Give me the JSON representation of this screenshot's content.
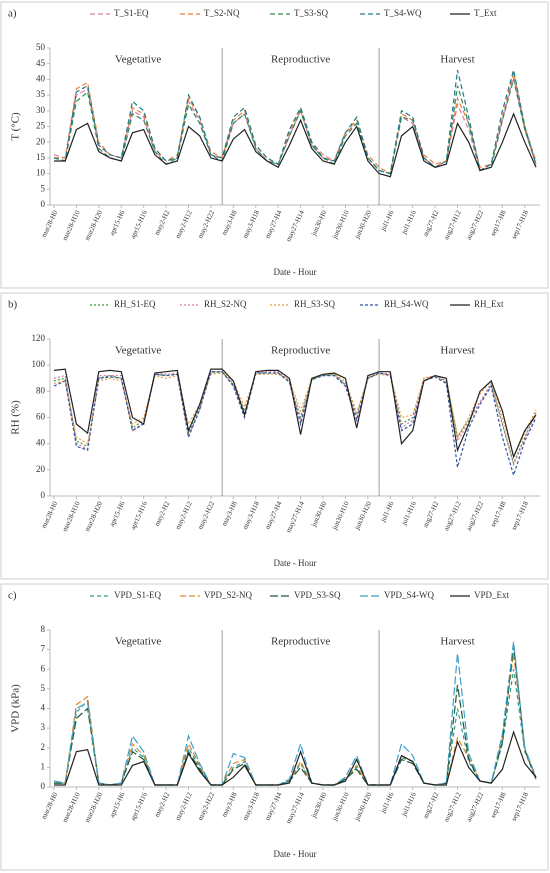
{
  "chart_data": [
    {
      "type": "line",
      "label": "a)",
      "ylabel": "T (°C)",
      "xlabel": "Date - Hour",
      "phases": [
        "Vegetative",
        "Reproductive",
        "Harvest"
      ],
      "categories": [
        "mar28-H0",
        null,
        "mar28-H10",
        null,
        "mar28-H20",
        null,
        "apr15-H6",
        null,
        "apr15-H16",
        null,
        "may2-H2",
        null,
        "may2-H12",
        null,
        "may2-H22",
        null,
        "may3-H8",
        null,
        "may3-H18",
        null,
        "may27-H4",
        null,
        "may27-H14",
        null,
        "jun30-H0",
        null,
        "jun30-H10",
        null,
        "jun30-H20",
        null,
        "jul1-H6",
        null,
        "jul1-H16",
        null,
        "aug27-H2",
        null,
        "aug27-H12",
        null,
        "aug27-H22",
        null,
        "sep17-H8",
        null,
        "sep17-H18",
        null
      ],
      "ylim": [
        0,
        50
      ],
      "yticks": [
        0,
        5,
        10,
        15,
        20,
        25,
        30,
        35,
        40,
        45,
        50
      ],
      "series": [
        {
          "name": "T_S1-EQ",
          "color": "#e07aa6",
          "dash": "5,3",
          "values": [
            16,
            15,
            35,
            37,
            19,
            16,
            15,
            30,
            28,
            17,
            14,
            15,
            33,
            27,
            16,
            15,
            26,
            29,
            18,
            14,
            13,
            22,
            30,
            19,
            15,
            14,
            23,
            26,
            15,
            11,
            10,
            28,
            26,
            15,
            12,
            14,
            32,
            24,
            11,
            13,
            27,
            41,
            24,
            13
          ]
        },
        {
          "name": "T_S2-NQ",
          "color": "#e8823c",
          "dash": "5,3",
          "values": [
            15,
            15,
            37,
            39,
            20,
            16,
            15,
            31,
            29,
            18,
            14,
            16,
            34,
            28,
            17,
            15,
            27,
            30,
            19,
            15,
            13,
            23,
            31,
            20,
            16,
            14,
            23,
            27,
            16,
            12,
            10,
            29,
            27,
            16,
            13,
            14,
            34,
            26,
            12,
            13,
            28,
            42,
            25,
            14
          ]
        },
        {
          "name": "T_S3-SQ",
          "color": "#2e8b57",
          "dash": "5,3",
          "values": [
            15,
            14,
            33,
            36,
            18,
            15,
            14,
            29,
            27,
            17,
            13,
            15,
            32,
            26,
            16,
            14,
            26,
            29,
            18,
            14,
            13,
            22,
            30,
            19,
            15,
            13,
            22,
            26,
            15,
            11,
            10,
            28,
            27,
            15,
            12,
            13,
            38,
            26,
            11,
            12,
            27,
            40,
            24,
            13
          ]
        },
        {
          "name": "T_S4-WQ",
          "color": "#1f7a8c",
          "dash": "5,3",
          "values": [
            15,
            14,
            36,
            38,
            19,
            16,
            15,
            33,
            30,
            18,
            14,
            15,
            35,
            28,
            16,
            15,
            28,
            31,
            19,
            15,
            13,
            24,
            31,
            20,
            15,
            14,
            23,
            28,
            15,
            11,
            10,
            30,
            28,
            15,
            12,
            14,
            43,
            28,
            11,
            13,
            30,
            43,
            25,
            13
          ]
        },
        {
          "name": "T_Ext",
          "color": "#222222",
          "dash": "none",
          "values": [
            14,
            14,
            24,
            26,
            17,
            15,
            14,
            23,
            24,
            16,
            13,
            14,
            25,
            22,
            15,
            14,
            21,
            24,
            17,
            14,
            12,
            19,
            27,
            18,
            14,
            13,
            20,
            25,
            14,
            10,
            9,
            22,
            25,
            14,
            12,
            13,
            26,
            20,
            11,
            12,
            20,
            29,
            20,
            12
          ]
        }
      ]
    },
    {
      "type": "line",
      "label": "b)",
      "ylabel": "RH (%)",
      "xlabel": "Date - Hour",
      "phases": [
        "Vegetative",
        "Reproductive",
        "Harvest"
      ],
      "categories": [
        "mar28-H0",
        null,
        "mar28-H10",
        null,
        "mar28-H20",
        null,
        "apr15-H6",
        null,
        "apr15-H16",
        null,
        "may2-H2",
        null,
        "may2-H12",
        null,
        "may2-H22",
        null,
        "may3-H8",
        null,
        "may3-H18",
        null,
        "may27-H4",
        null,
        "may27-H14",
        null,
        "jun30-H0",
        null,
        "jun30-H10",
        null,
        "jun30-H20",
        null,
        "jul1-H6",
        null,
        "jul1-H16",
        null,
        "aug27-H2",
        null,
        "aug27-H12",
        null,
        "aug27-H22",
        null,
        "sep17-H8",
        null,
        "sep17-H18",
        null
      ],
      "ylim": [
        0,
        120
      ],
      "yticks": [
        0,
        20,
        40,
        60,
        80,
        100,
        120
      ],
      "series": [
        {
          "name": "RH_S1-EQ",
          "color": "#3a9a3a",
          "dash": "2,2",
          "values": [
            88,
            90,
            42,
            38,
            90,
            92,
            90,
            52,
            58,
            93,
            92,
            93,
            48,
            68,
            94,
            95,
            85,
            65,
            94,
            94,
            94,
            88,
            60,
            89,
            92,
            93,
            85,
            62,
            90,
            94,
            93,
            55,
            60,
            88,
            92,
            88,
            45,
            58,
            72,
            85,
            55,
            25,
            45,
            63
          ]
        },
        {
          "name": "RH_S2-NQ",
          "color": "#d97aa0",
          "dash": "2,2",
          "values": [
            90,
            92,
            40,
            36,
            92,
            92,
            92,
            50,
            56,
            94,
            93,
            94,
            46,
            66,
            95,
            95,
            86,
            63,
            94,
            95,
            95,
            88,
            58,
            90,
            93,
            93,
            86,
            60,
            91,
            94,
            93,
            52,
            58,
            90,
            92,
            87,
            42,
            56,
            72,
            86,
            55,
            24,
            44,
            64
          ]
        },
        {
          "name": "RH_S3-SQ",
          "color": "#e8a040",
          "dash": "2,2",
          "values": [
            86,
            88,
            45,
            40,
            88,
            90,
            88,
            55,
            60,
            92,
            90,
            92,
            55,
            70,
            93,
            94,
            88,
            68,
            93,
            93,
            93,
            89,
            65,
            90,
            92,
            93,
            88,
            64,
            90,
            93,
            92,
            60,
            62,
            90,
            92,
            90,
            45,
            60,
            78,
            88,
            60,
            30,
            48,
            66
          ]
        },
        {
          "name": "RH_S4-WQ",
          "color": "#2f55a4",
          "dash": "3,2",
          "values": [
            84,
            88,
            38,
            35,
            90,
            91,
            90,
            50,
            55,
            93,
            92,
            93,
            45,
            66,
            95,
            95,
            84,
            60,
            94,
            94,
            94,
            87,
            55,
            89,
            92,
            92,
            84,
            58,
            90,
            94,
            92,
            50,
            55,
            88,
            91,
            86,
            22,
            52,
            70,
            84,
            45,
            16,
            42,
            60
          ]
        },
        {
          "name": "RH_Ext",
          "color": "#222222",
          "dash": "none",
          "values": [
            96,
            97,
            55,
            48,
            95,
            96,
            95,
            60,
            55,
            94,
            95,
            96,
            50,
            70,
            97,
            97,
            88,
            62,
            95,
            96,
            96,
            90,
            47,
            90,
            93,
            94,
            90,
            52,
            92,
            95,
            95,
            40,
            50,
            88,
            92,
            90,
            35,
            55,
            80,
            88,
            65,
            30,
            50,
            62
          ]
        }
      ]
    },
    {
      "type": "line",
      "label": "c)",
      "ylabel": "VPD (kPa)",
      "xlabel": "Date - Hour",
      "phases": [
        "Vegetative",
        "Reproductive",
        "Harvest"
      ],
      "categories": [
        "mar28-H0",
        null,
        "mar28-H10",
        null,
        "mar28-H20",
        null,
        "apr15-H6",
        null,
        "apr15-H16",
        null,
        "may2-H2",
        null,
        "may2-H12",
        null,
        "may2-H22",
        null,
        "may3-H8",
        null,
        "may3-H18",
        null,
        "may27-H4",
        null,
        "may27-H14",
        null,
        "jun30-H0",
        null,
        "jun30-H10",
        null,
        "jun30-H20",
        null,
        "jul1-H6",
        null,
        "jul1-H16",
        null,
        "aug27-H2",
        null,
        "aug27-H12",
        null,
        "aug27-H22",
        null,
        "sep17-H8",
        null,
        "sep17-H18",
        null
      ],
      "ylim": [
        0,
        8
      ],
      "yticks": [
        0,
        1,
        2,
        3,
        4,
        5,
        6,
        7,
        8
      ],
      "series": [
        {
          "name": "VPD_S1-EQ",
          "color": "#3a9a8a",
          "dash": "4,3",
          "values": [
            0.2,
            0.2,
            3.8,
            4.4,
            0.2,
            0.1,
            0.2,
            2.0,
            1.5,
            0.1,
            0.1,
            0.1,
            2.0,
            1.0,
            0.1,
            0.1,
            1.0,
            1.3,
            0.1,
            0.1,
            0.1,
            0.3,
            1.2,
            0.2,
            0.1,
            0.1,
            0.4,
            1.0,
            0.1,
            0.1,
            0.1,
            1.5,
            1.3,
            0.2,
            0.1,
            0.2,
            4.0,
            1.3,
            0.3,
            0.2,
            2.2,
            6.0,
            1.8,
            0.4
          ]
        },
        {
          "name": "VPD_S2-NQ",
          "color": "#d98a30",
          "dash": "6,3",
          "values": [
            0.2,
            0.2,
            4.2,
            4.6,
            0.2,
            0.1,
            0.2,
            2.2,
            1.6,
            0.1,
            0.1,
            0.1,
            2.2,
            1.1,
            0.1,
            0.1,
            1.2,
            1.4,
            0.1,
            0.1,
            0.1,
            0.3,
            1.3,
            0.2,
            0.1,
            0.1,
            0.4,
            1.1,
            0.1,
            0.1,
            0.1,
            1.6,
            1.3,
            0.2,
            0.1,
            0.2,
            2.5,
            1.5,
            0.3,
            0.2,
            2.5,
            6.8,
            1.9,
            0.4
          ]
        },
        {
          "name": "VPD_S3-SQ",
          "color": "#1f5a3a",
          "dash": "8,3",
          "values": [
            0.2,
            0.2,
            3.5,
            4.0,
            0.2,
            0.1,
            0.2,
            1.8,
            1.4,
            0.1,
            0.1,
            0.1,
            1.8,
            0.9,
            0.1,
            0.1,
            0.9,
            1.2,
            0.1,
            0.1,
            0.1,
            0.3,
            1.0,
            0.2,
            0.1,
            0.1,
            0.4,
            0.9,
            0.1,
            0.1,
            0.1,
            1.4,
            1.2,
            0.2,
            0.1,
            0.2,
            5.2,
            1.4,
            0.3,
            0.2,
            2.3,
            7.2,
            1.9,
            0.4
          ]
        },
        {
          "name": "VPD_S4-WQ",
          "color": "#3aa0c8",
          "dash": "8,3",
          "values": [
            0.3,
            0.2,
            4.0,
            4.3,
            0.2,
            0.1,
            0.2,
            2.6,
            1.8,
            0.1,
            0.1,
            0.1,
            2.6,
            1.2,
            0.1,
            0.1,
            1.7,
            1.5,
            0.1,
            0.1,
            0.1,
            0.4,
            2.2,
            0.2,
            0.1,
            0.1,
            0.5,
            1.6,
            0.1,
            0.1,
            0.1,
            2.2,
            1.6,
            0.2,
            0.1,
            0.2,
            6.8,
            1.7,
            0.3,
            0.2,
            2.7,
            7.4,
            2.0,
            0.5
          ]
        },
        {
          "name": "VPD_Ext",
          "color": "#222222",
          "dash": "none",
          "values": [
            0.1,
            0.1,
            1.8,
            1.9,
            0.1,
            0.1,
            0.1,
            1.1,
            1.3,
            0.1,
            0.1,
            0.1,
            1.7,
            0.8,
            0.1,
            0.1,
            0.5,
            1.1,
            0.1,
            0.1,
            0.1,
            0.2,
            1.8,
            0.2,
            0.1,
            0.1,
            0.3,
            1.4,
            0.1,
            0.1,
            0.1,
            1.6,
            1.3,
            0.2,
            0.1,
            0.1,
            2.3,
            1.0,
            0.3,
            0.2,
            0.9,
            2.8,
            1.2,
            0.5
          ]
        }
      ]
    }
  ]
}
